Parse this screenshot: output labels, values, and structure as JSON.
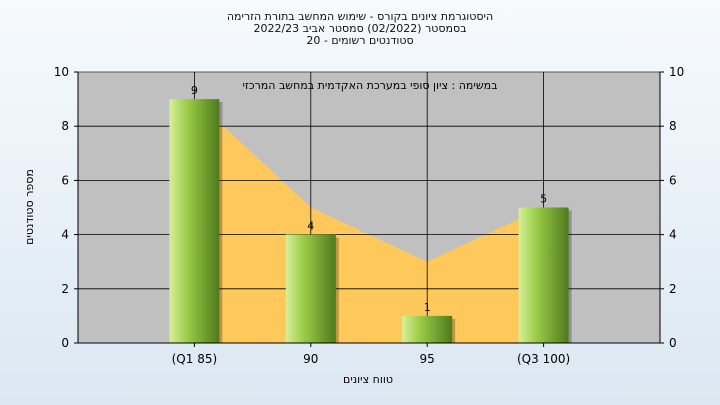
{
  "chart_data": {
    "type": "bar",
    "title_lines": [
      "היסטוגרמת ציונים בקורס - שימוש המחשב בתורת הזרימה",
      "בסמסטר  (02/2022)  סמסטר אביב 2022/23",
      "סטודנטים רשומים - 20"
    ],
    "annotation": "במשימה : ציון סופי במערכת האקדמית במחשב המרכזי",
    "xlabel": "טווח ציונים",
    "ylabel": "מספר סטודנטים",
    "categories": [
      "(Q1 85)",
      "90",
      "95",
      "(Q3 100)"
    ],
    "values": [
      9,
      4,
      1,
      5
    ],
    "area_values": [
      9,
      5,
      3,
      5
    ],
    "ylim": [
      0,
      10
    ],
    "yticks": [
      0,
      2,
      4,
      6,
      8,
      10
    ],
    "grid": true,
    "colors": {
      "plot_bg": "#c0c0c0",
      "area": "#ffc85a",
      "bar_light": "#d8f09a",
      "bar_mid": "#9ccc48",
      "bar_dark": "#4e7a1c",
      "grid": "#000000"
    }
  }
}
